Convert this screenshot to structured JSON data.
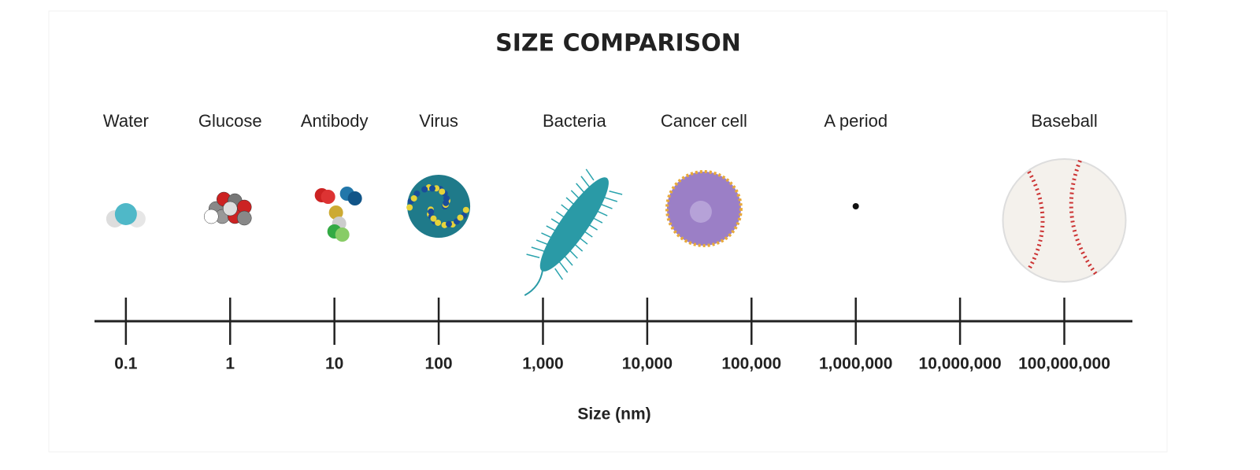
{
  "chart_data": {
    "type": "scale",
    "title": "SIZE COMPARISON",
    "xlabel": "Size (nm)",
    "xscale": "log",
    "categories": [
      "Water",
      "Glucose",
      "Antibody",
      "Virus",
      "Bacteria",
      "Cancer cell",
      "A period",
      "Baseball"
    ],
    "values": [
      0.1,
      1,
      10,
      100,
      2000,
      35000,
      1000000,
      100000000
    ],
    "xlim": [
      0.05,
      450000000
    ],
    "xticks": [
      0.1,
      1,
      10,
      100,
      {
        "value": 1000,
        "label": "1,000"
      },
      {
        "value": 10000,
        "label": "10,000"
      },
      {
        "value": 100000,
        "label": "100,000"
      },
      {
        "value": 1000000,
        "label": "1,000,000"
      },
      {
        "value": 10000000,
        "label": "10,000,000"
      },
      {
        "value": 100000000,
        "label": "100,000,000"
      }
    ]
  }
}
